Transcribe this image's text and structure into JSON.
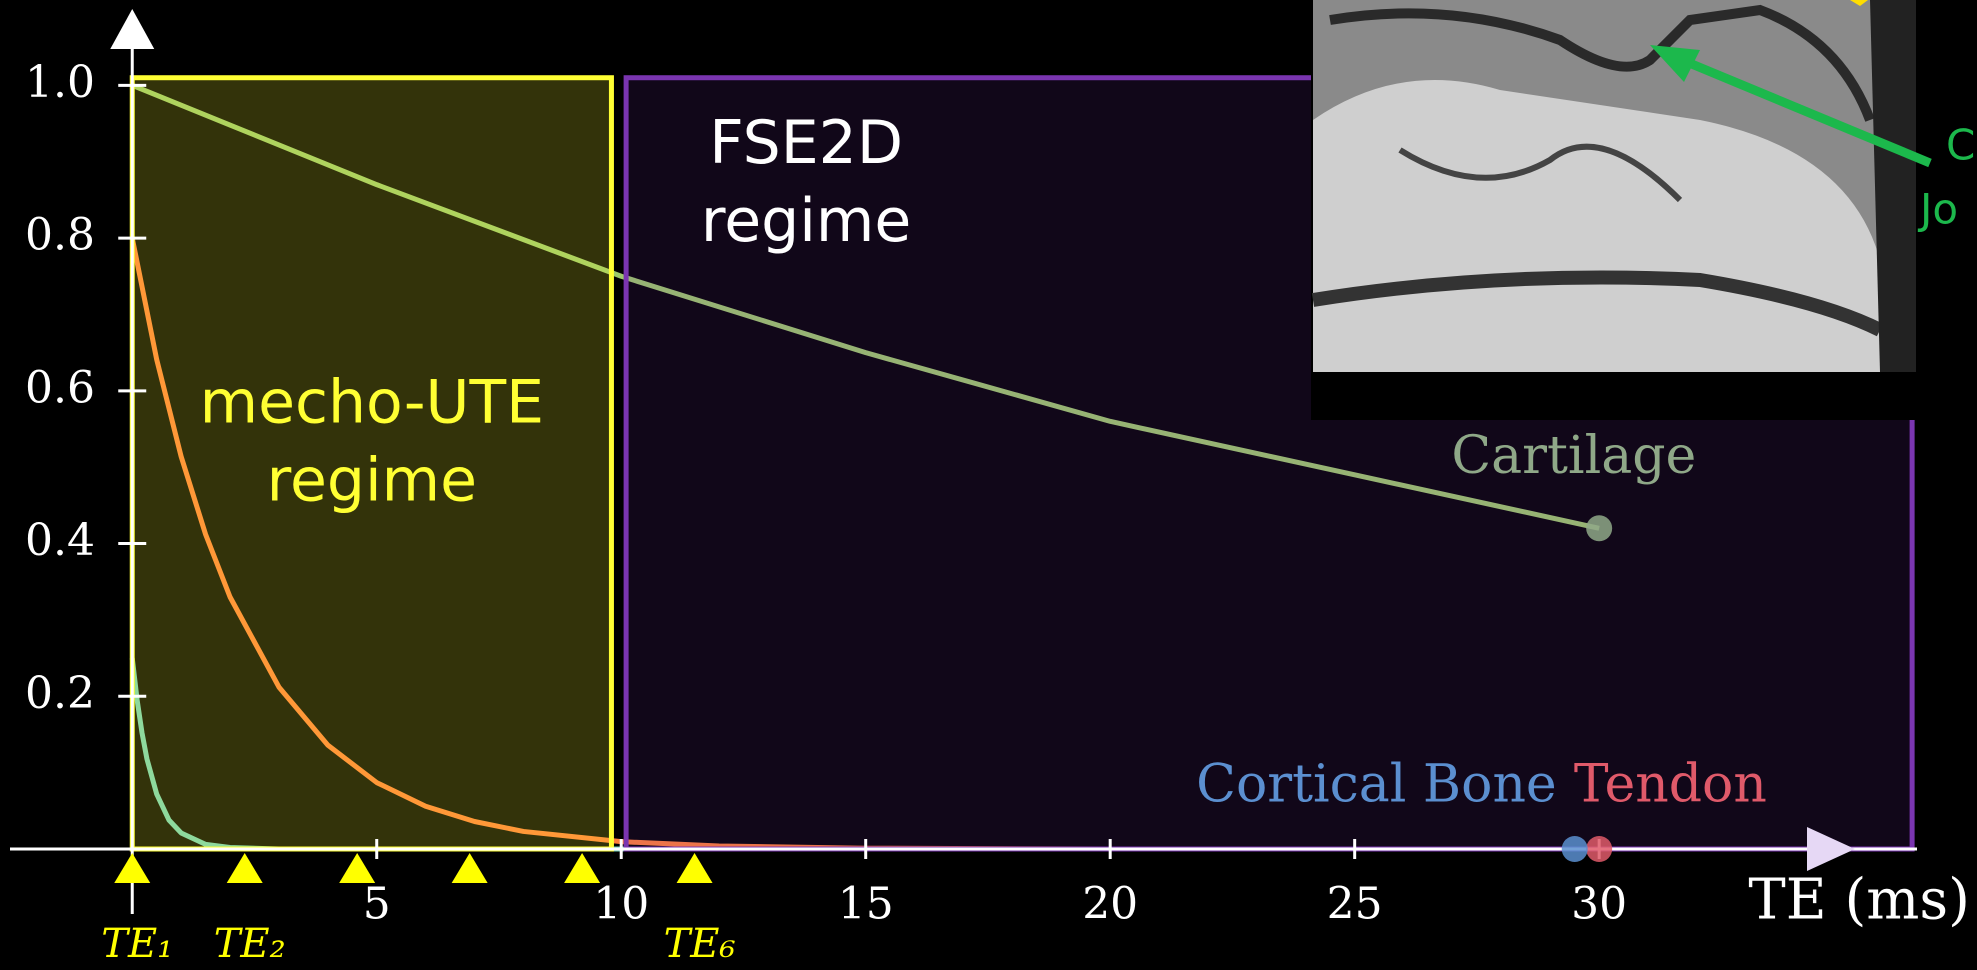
{
  "chart_data": {
    "type": "line",
    "xlabel": "TE (ms)",
    "xlim": [
      -2.5,
      36.5
    ],
    "ylim": [
      0,
      1.1
    ],
    "xticks": [
      5,
      10,
      15,
      20,
      25,
      30
    ],
    "yticks": [
      0.2,
      0.4,
      0.6,
      0.8,
      {
        "value": 1,
        "label": "1.0"
      }
    ],
    "series": [
      {
        "name": "Cartilage",
        "color": "#9cc96a",
        "label_color": "#8fa888",
        "x": [
          0,
          5,
          10,
          15,
          20,
          25,
          30
        ],
        "values": [
          1.0,
          0.87,
          0.75,
          0.65,
          0.56,
          0.49,
          0.42
        ]
      },
      {
        "name": "Tendon",
        "color": "#ff7f3a",
        "label_color": "#e05a6a",
        "x": [
          0,
          0.5,
          1,
          1.5,
          2,
          3,
          4,
          5,
          6,
          7,
          8,
          10,
          12,
          15,
          20,
          30
        ],
        "values": [
          0.8,
          0.641,
          0.514,
          0.412,
          0.33,
          0.212,
          0.136,
          0.087,
          0.056,
          0.036,
          0.023,
          0.0096,
          0.004,
          0.001,
          0,
          0
        ]
      },
      {
        "name": "Cortical Bone",
        "color": "#72d0b8",
        "label_color": "#5b8fd0",
        "x": [
          0,
          0.1,
          0.2,
          0.3,
          0.5,
          0.75,
          1,
          1.5,
          2,
          3,
          29.5
        ],
        "values": [
          0.25,
          0.195,
          0.152,
          0.118,
          0.072,
          0.038,
          0.021,
          0.006,
          0.002,
          0,
          0
        ]
      }
    ],
    "regions": [
      {
        "lines": [
          "mecho-UTE",
          "regime"
        ],
        "x": [
          0,
          9.8
        ],
        "ylim": [
          0,
          1.01
        ],
        "color": "#ffff33"
      },
      {
        "lines": [
          "FSE2D",
          "regime"
        ],
        "x": [
          10.1,
          36.4
        ],
        "ylim": [
          0,
          1.01
        ],
        "color": "#7a35b0"
      }
    ],
    "te_markers": {
      "color": "#ffff00",
      "x": [
        0,
        2.3,
        4.6,
        6.9,
        9.2,
        11.5
      ],
      "labels": [
        "TE₁",
        "TE₂",
        null,
        null,
        null,
        "TE₆"
      ]
    },
    "annotation": [
      "C",
      "Jo"
    ]
  }
}
